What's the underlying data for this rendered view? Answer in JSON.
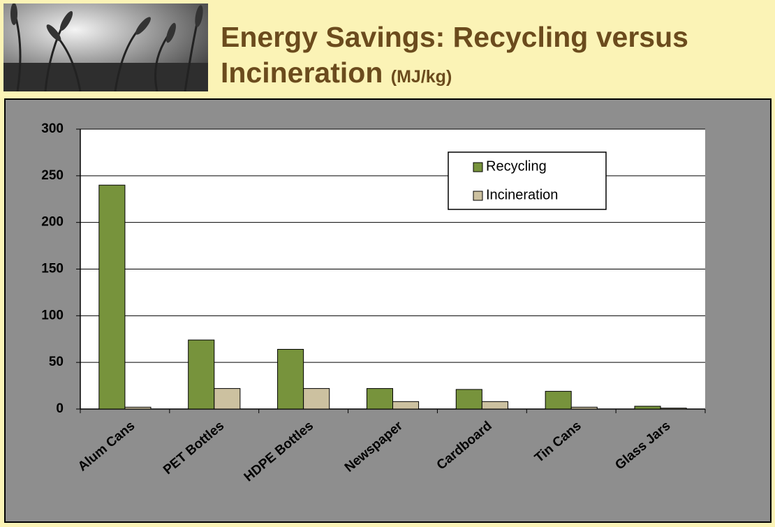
{
  "chart_data": {
    "type": "bar",
    "title": "Energy Savings: Recycling versus Incineration",
    "units": "(MJ/kg)",
    "categories": [
      "Alum Cans",
      "PET Bottles",
      "HDPE Bottles",
      "Newspaper",
      "Cardboard",
      "Tin Cans",
      "Glass Jars"
    ],
    "series": [
      {
        "name": "Recycling",
        "color": "#77933c",
        "values": [
          240,
          74,
          64,
          22,
          21,
          19,
          3
        ]
      },
      {
        "name": "Incineration",
        "color": "#ccc1a0",
        "values": [
          2,
          22,
          22,
          8,
          8,
          2,
          1
        ]
      }
    ],
    "ylim": [
      0,
      300
    ],
    "yticks": [
      0,
      50,
      100,
      150,
      200,
      250,
      300
    ],
    "grid": true,
    "legend": "top-right"
  }
}
